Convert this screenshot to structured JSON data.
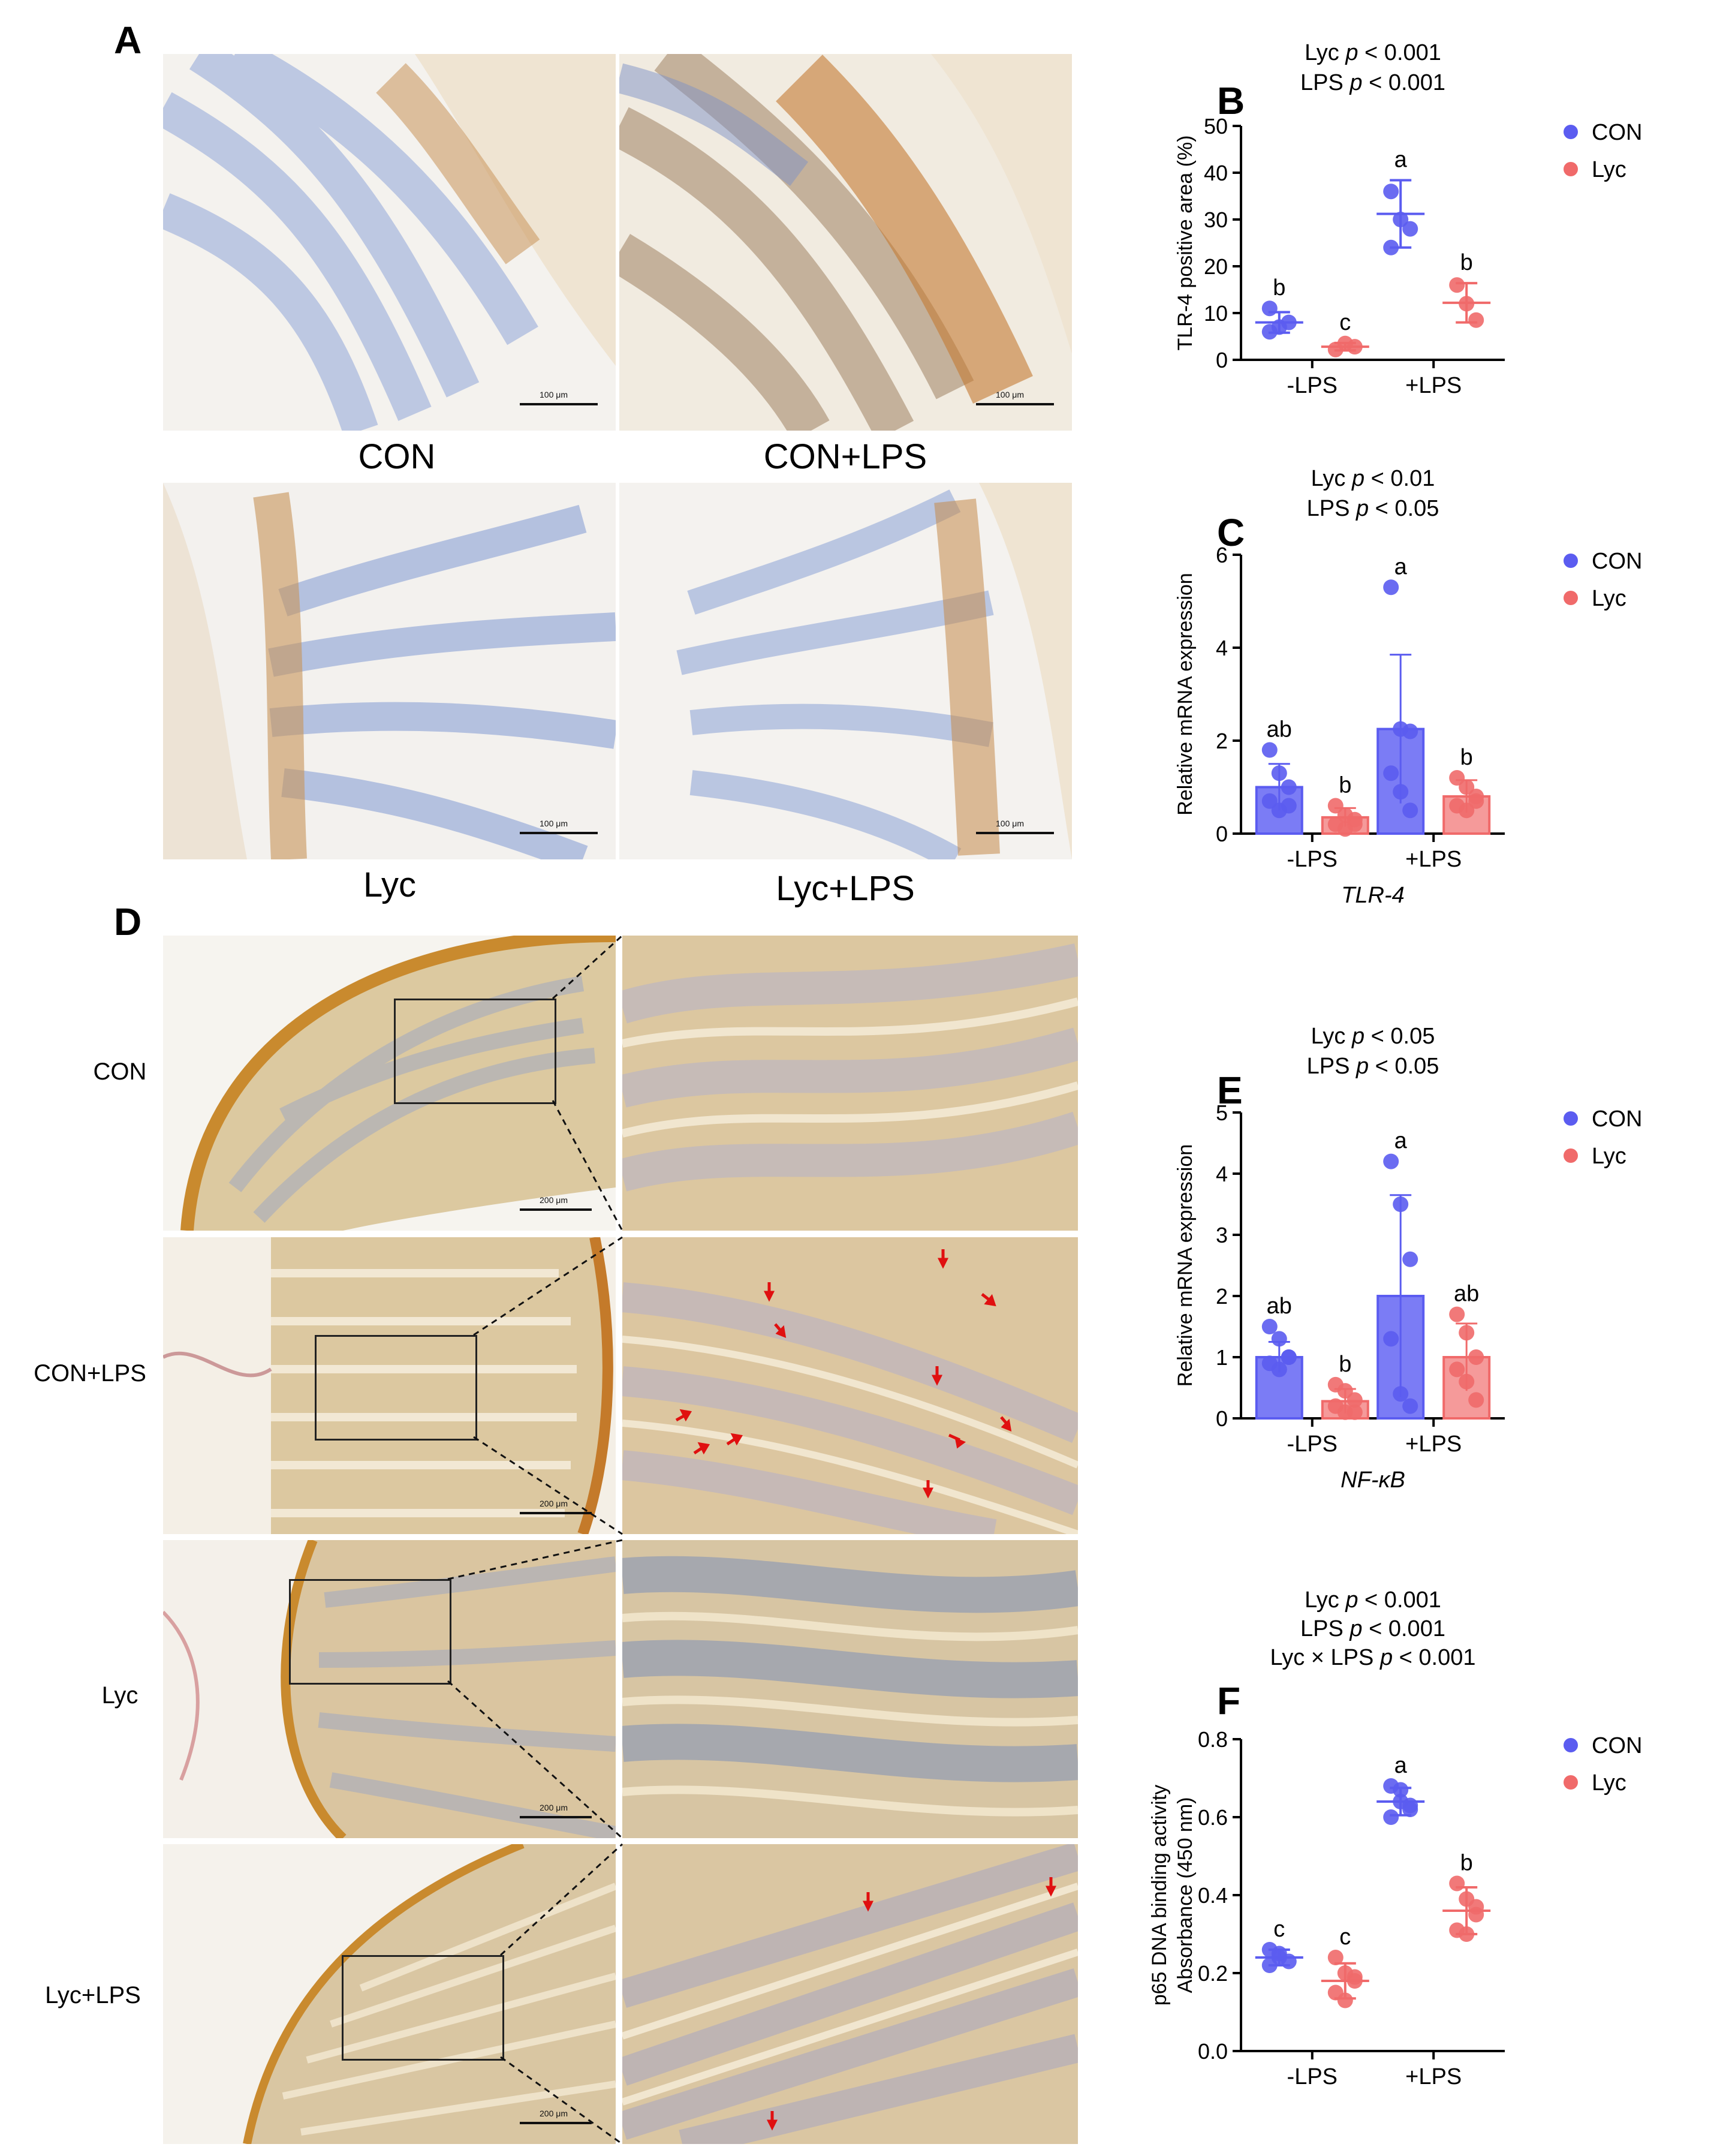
{
  "panel_labels": {
    "A": "A",
    "B": "B",
    "C": "C",
    "D": "D",
    "E": "E",
    "F": "F"
  },
  "panel_a": {
    "captions": [
      "CON",
      "CON+LPS",
      "Lyc",
      "Lyc+LPS"
    ],
    "scale": "100 μm"
  },
  "panel_d": {
    "row_labels": [
      "CON",
      "CON+LPS",
      "Lyc",
      "Lyc+LPS"
    ],
    "scale": "200 μm"
  },
  "colors": {
    "con": "#5b5cf0",
    "lyc": "#f06a6a",
    "con_bar": "#7b7cf5",
    "lyc_bar": "#f59a9a",
    "he_tissue": "#d8c49a",
    "ihc_stain": "#b97a3a",
    "hematoxylin": "#6c86c8",
    "arrow": "#e01010"
  },
  "chart_data": [
    {
      "type": "scatter",
      "panel": "B",
      "stats": [
        "Lyc p < 0.001",
        "LPS p < 0.001"
      ],
      "ylabel": "TLR-4 positive area (%)",
      "xlabel": "",
      "categories": [
        "-LPS",
        "+LPS"
      ],
      "ylim": [
        0,
        50
      ],
      "yticks": [
        0,
        10,
        20,
        30,
        40,
        50
      ],
      "legend": [
        "CON",
        "Lyc"
      ],
      "legend_position": "top-right",
      "series": [
        {
          "name": "CON",
          "mean": [
            8,
            31.2
          ],
          "err": [
            2.2,
            7.2
          ],
          "points": [
            [
              11,
              7,
              8,
              6
            ],
            [
              36,
              30,
              28,
              24
            ]
          ],
          "letters": [
            "b",
            "a"
          ]
        },
        {
          "name": "Lyc",
          "mean": [
            2.8,
            12.2
          ],
          "err": [
            0.8,
            4.2
          ],
          "points": [
            [
              2.2,
              3.5,
              2.8
            ],
            [
              16,
              12,
              8.5
            ]
          ],
          "letters": [
            "c",
            "b"
          ]
        }
      ]
    },
    {
      "type": "bar",
      "panel": "C",
      "stats": [
        "Lyc p < 0.01",
        "LPS p < 0.05"
      ],
      "ylabel": "Relative mRNA expression",
      "xlabel": "TLR-4",
      "categories": [
        "-LPS",
        "+LPS"
      ],
      "ylim": [
        0,
        6
      ],
      "yticks": [
        0,
        2,
        4,
        6
      ],
      "legend": [
        "CON",
        "Lyc"
      ],
      "legend_position": "top-right",
      "series": [
        {
          "name": "CON",
          "mean": [
            1.0,
            2.25
          ],
          "err": [
            0.5,
            1.6
          ],
          "points": [
            [
              1.8,
              1.3,
              1.0,
              0.7,
              0.5,
              0.6
            ],
            [
              5.3,
              2.25,
              2.2,
              1.3,
              0.9,
              0.5
            ]
          ],
          "letters": [
            "ab",
            "a"
          ]
        },
        {
          "name": "Lyc",
          "mean": [
            0.35,
            0.8
          ],
          "err": [
            0.2,
            0.35
          ],
          "points": [
            [
              0.6,
              0.4,
              0.3,
              0.2,
              0.1,
              0.2
            ],
            [
              1.2,
              1.0,
              0.8,
              0.6,
              0.5,
              0.7
            ]
          ],
          "letters": [
            "b",
            "b"
          ]
        }
      ]
    },
    {
      "type": "bar",
      "panel": "E",
      "stats": [
        "Lyc p < 0.05",
        "LPS p < 0.05"
      ],
      "ylabel": "Relative mRNA expression",
      "xlabel": "NF-κB",
      "categories": [
        "-LPS",
        "+LPS"
      ],
      "ylim": [
        0,
        5
      ],
      "yticks": [
        0,
        1,
        2,
        3,
        4,
        5
      ],
      "legend": [
        "CON",
        "Lyc"
      ],
      "legend_position": "top-right",
      "series": [
        {
          "name": "CON",
          "mean": [
            1.0,
            2.0
          ],
          "err": [
            0.25,
            1.65
          ],
          "points": [
            [
              1.5,
              1.3,
              1.0,
              0.9,
              0.8,
              1.0
            ],
            [
              4.2,
              3.5,
              2.6,
              1.3,
              0.4,
              0.2
            ]
          ],
          "letters": [
            "ab",
            "a"
          ]
        },
        {
          "name": "Lyc",
          "mean": [
            0.28,
            1.0
          ],
          "err": [
            0.2,
            0.55
          ],
          "points": [
            [
              0.55,
              0.45,
              0.3,
              0.2,
              0.1,
              0.1
            ],
            [
              1.7,
              1.4,
              1.0,
              0.8,
              0.6,
              0.3
            ]
          ],
          "letters": [
            "b",
            "ab"
          ]
        }
      ]
    },
    {
      "type": "scatter",
      "panel": "F",
      "stats": [
        "Lyc p < 0.001",
        "LPS p < 0.001",
        "Lyc × LPS p < 0.001"
      ],
      "ylabel": "p65 DNA binding activity",
      "ylabel2": "Absorbance (450 nm)",
      "xlabel": "",
      "categories": [
        "-LPS",
        "+LPS"
      ],
      "ylim": [
        0,
        0.8
      ],
      "yticks": [
        "0.0",
        "0.2",
        "0.4",
        "0.6",
        "0.8"
      ],
      "legend": [
        "CON",
        "Lyc"
      ],
      "legend_position": "top-right",
      "series": [
        {
          "name": "CON",
          "mean": [
            0.24,
            0.64
          ],
          "err": [
            0.02,
            0.035
          ],
          "points": [
            [
              0.26,
              0.25,
              0.23,
              0.22,
              0.24
            ],
            [
              0.68,
              0.67,
              0.63,
              0.6,
              0.64,
              0.62
            ]
          ],
          "letters": [
            "c",
            "a"
          ]
        },
        {
          "name": "Lyc",
          "mean": [
            0.18,
            0.36
          ],
          "err": [
            0.045,
            0.06
          ],
          "points": [
            [
              0.24,
              0.2,
              0.18,
              0.15,
              0.13,
              0.19
            ],
            [
              0.43,
              0.39,
              0.35,
              0.31,
              0.3,
              0.37
            ]
          ],
          "letters": [
            "c",
            "b"
          ]
        }
      ]
    }
  ]
}
